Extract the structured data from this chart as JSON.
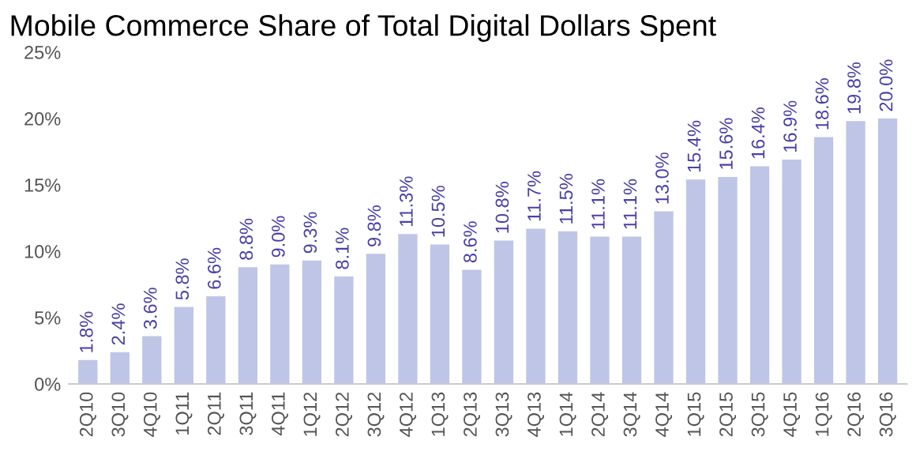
{
  "chart_data": {
    "type": "bar",
    "title": "Mobile Commerce Share of Total Digital Dollars Spent",
    "categories": [
      "2Q10",
      "3Q10",
      "4Q10",
      "1Q11",
      "2Q11",
      "3Q11",
      "4Q11",
      "1Q12",
      "2Q12",
      "3Q12",
      "4Q12",
      "1Q13",
      "2Q13",
      "3Q13",
      "4Q13",
      "1Q14",
      "2Q14",
      "3Q14",
      "4Q14",
      "1Q15",
      "2Q15",
      "3Q15",
      "4Q15",
      "1Q16",
      "2Q16",
      "3Q16"
    ],
    "values": [
      1.8,
      2.4,
      3.6,
      5.8,
      6.6,
      8.8,
      9.0,
      9.3,
      8.1,
      9.8,
      11.3,
      10.5,
      8.6,
      10.8,
      11.7,
      11.5,
      11.1,
      11.1,
      13.0,
      15.4,
      15.6,
      16.4,
      16.9,
      18.6,
      19.8,
      20.0
    ],
    "value_labels": [
      "1.8%",
      "2.4%",
      "3.6%",
      "5.8%",
      "6.6%",
      "8.8%",
      "9.0%",
      "9.3%",
      "8.1%",
      "9.8%",
      "11.3%",
      "10.5%",
      "8.6%",
      "10.8%",
      "11.7%",
      "11.5%",
      "11.1%",
      "11.1%",
      "13.0%",
      "15.4%",
      "15.6%",
      "16.4%",
      "16.9%",
      "18.6%",
      "19.8%",
      "20.0%"
    ],
    "color": "#bfc5e6",
    "ylim": [
      0,
      25
    ],
    "yticks": [
      {
        "value": 0,
        "label": "0%"
      },
      {
        "value": 5,
        "label": "5%"
      },
      {
        "value": 10,
        "label": "10%"
      },
      {
        "value": 15,
        "label": "15%"
      },
      {
        "value": 20,
        "label": "20%"
      },
      {
        "value": 25,
        "label": "25%"
      }
    ],
    "grid": false
  }
}
